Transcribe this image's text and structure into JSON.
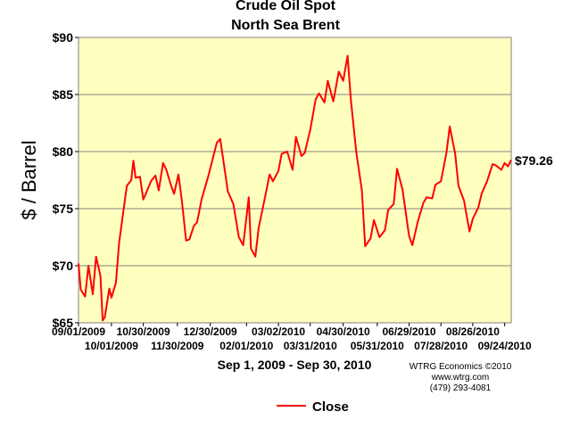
{
  "chart_data": {
    "type": "line",
    "title": "Crude Oil Spot",
    "subtitle": "North Sea Brent",
    "ylabel": "$ / Barrel",
    "xlabel": "Sep 1, 2009 - Sep 30, 2010",
    "ylim": [
      65,
      90
    ],
    "y_ticks": [
      "$65",
      "$70",
      "$75",
      "$80",
      "$85",
      "$90"
    ],
    "x_ticks_top": [
      "09/01/2009",
      "10/30/2009",
      "12/30/2009",
      "03/02/2010",
      "04/30/2010",
      "06/29/2010",
      "08/26/2010"
    ],
    "x_ticks_bottom": [
      "10/01/2009",
      "11/30/2009",
      "02/01/2010",
      "03/31/2010",
      "05/31/2010",
      "07/28/2010",
      "09/24/2010"
    ],
    "last_value_label": "$79.26",
    "grid": true,
    "legend": "bottom-center",
    "credits": [
      "WTRG Economics  ©2010",
      "www.wtrg.com",
      "(479) 293-4081"
    ],
    "series": [
      {
        "name": "Close",
        "color": "#ff0000",
        "x": [
          "2009-09-01",
          "2009-09-03",
          "2009-09-07",
          "2009-09-10",
          "2009-09-14",
          "2009-09-17",
          "2009-09-21",
          "2009-09-23",
          "2009-09-25",
          "2009-09-29",
          "2009-10-01",
          "2009-10-05",
          "2009-10-08",
          "2009-10-12",
          "2009-10-15",
          "2009-10-19",
          "2009-10-21",
          "2009-10-23",
          "2009-10-27",
          "2009-10-30",
          "2009-11-03",
          "2009-11-06",
          "2009-11-10",
          "2009-11-13",
          "2009-11-17",
          "2009-11-20",
          "2009-11-24",
          "2009-11-27",
          "2009-12-01",
          "2009-12-04",
          "2009-12-08",
          "2009-12-11",
          "2009-12-15",
          "2009-12-18",
          "2009-12-22",
          "2009-12-28",
          "2009-12-31",
          "2010-01-05",
          "2010-01-08",
          "2010-01-12",
          "2010-01-15",
          "2010-01-20",
          "2010-01-25",
          "2010-01-29",
          "2010-02-03",
          "2010-02-05",
          "2010-02-09",
          "2010-02-12",
          "2010-02-17",
          "2010-02-22",
          "2010-02-25",
          "2010-03-02",
          "2010-03-05",
          "2010-03-10",
          "2010-03-15",
          "2010-03-18",
          "2010-03-23",
          "2010-03-26",
          "2010-03-31",
          "2010-04-05",
          "2010-04-08",
          "2010-04-13",
          "2010-04-16",
          "2010-04-21",
          "2010-04-26",
          "2010-04-30",
          "2010-05-04",
          "2010-05-07",
          "2010-05-12",
          "2010-05-17",
          "2010-05-20",
          "2010-05-25",
          "2010-05-28",
          "2010-06-02",
          "2010-06-07",
          "2010-06-10",
          "2010-06-15",
          "2010-06-18",
          "2010-06-23",
          "2010-06-29",
          "2010-07-02",
          "2010-07-07",
          "2010-07-12",
          "2010-07-15",
          "2010-07-20",
          "2010-07-23",
          "2010-07-28",
          "2010-08-02",
          "2010-08-05",
          "2010-08-10",
          "2010-08-13",
          "2010-08-18",
          "2010-08-23",
          "2010-08-26",
          "2010-08-31",
          "2010-09-03",
          "2010-09-08",
          "2010-09-13",
          "2010-09-16",
          "2010-09-21",
          "2010-09-24",
          "2010-09-27",
          "2010-09-30"
        ],
        "y": [
          70.2,
          67.9,
          67.3,
          70.0,
          67.5,
          70.8,
          69.1,
          65.2,
          65.5,
          68.0,
          67.2,
          68.5,
          72.0,
          74.9,
          77.0,
          77.5,
          79.2,
          77.7,
          77.8,
          75.8,
          76.7,
          77.4,
          77.9,
          76.6,
          79.0,
          78.4,
          77.1,
          76.3,
          78.0,
          75.8,
          72.2,
          72.3,
          73.5,
          73.8,
          75.8,
          77.8,
          78.9,
          80.8,
          81.1,
          78.5,
          76.5,
          75.4,
          72.5,
          71.8,
          76.0,
          71.5,
          70.8,
          73.3,
          75.6,
          78.0,
          77.4,
          78.3,
          79.8,
          80.0,
          78.4,
          81.3,
          79.6,
          79.9,
          81.9,
          84.6,
          85.1,
          84.3,
          86.2,
          84.4,
          87.0,
          86.2,
          88.4,
          84.5,
          79.9,
          76.6,
          71.7,
          72.4,
          74.0,
          72.5,
          73.1,
          74.9,
          75.4,
          78.5,
          76.7,
          72.6,
          71.8,
          73.9,
          75.5,
          76.0,
          75.9,
          77.1,
          77.4,
          79.9,
          82.2,
          79.8,
          77.0,
          75.7,
          73.0,
          74.1,
          75.1,
          76.3,
          77.4,
          78.9,
          78.8,
          78.4,
          79.0,
          78.7,
          79.26
        ]
      }
    ]
  }
}
